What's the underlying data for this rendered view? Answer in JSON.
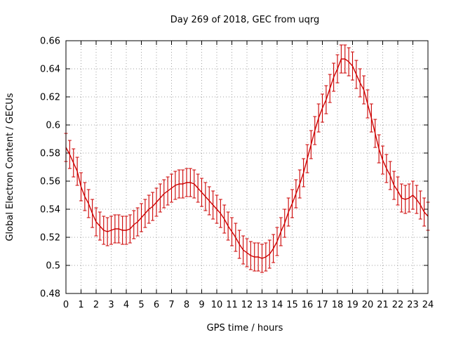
{
  "chart_data": {
    "type": "line",
    "title": "Day 269 of 2018, GEC from uqrg",
    "xlabel": "GPS time / hours",
    "ylabel": "Global Electron Content / GECUs",
    "xlim": [
      0,
      24
    ],
    "ylim": [
      0.48,
      0.66
    ],
    "xticks": [
      0,
      1,
      2,
      3,
      4,
      5,
      6,
      7,
      8,
      9,
      10,
      11,
      12,
      13,
      14,
      15,
      16,
      17,
      18,
      19,
      20,
      21,
      22,
      23,
      24
    ],
    "xtick_labels": [
      "0",
      "1",
      "2",
      "3",
      "4",
      "5",
      "6",
      "7",
      "8",
      "9",
      "10",
      "11",
      "12",
      "13",
      "14",
      "15",
      "16",
      "17",
      "18",
      "19",
      "20",
      "21",
      "22",
      "23",
      "24"
    ],
    "yticks": [
      0.48,
      0.5,
      0.52,
      0.54,
      0.56,
      0.58,
      0.6,
      0.62,
      0.64,
      0.66
    ],
    "ytick_labels": [
      "0.48",
      "0.5",
      "0.52",
      "0.54",
      "0.56",
      "0.58",
      "0.6",
      "0.62",
      "0.64",
      "0.66"
    ],
    "grid": true,
    "series": [
      {
        "name": "GEC",
        "color": "#cc0000",
        "error": 0.01,
        "x": [
          0.0,
          0.25,
          0.5,
          0.75,
          1.0,
          1.25,
          1.5,
          1.75,
          2.0,
          2.25,
          2.5,
          2.75,
          3.0,
          3.25,
          3.5,
          3.75,
          4.0,
          4.25,
          4.5,
          4.75,
          5.0,
          5.25,
          5.5,
          5.75,
          6.0,
          6.25,
          6.5,
          6.75,
          7.0,
          7.25,
          7.5,
          7.75,
          8.0,
          8.25,
          8.5,
          8.75,
          9.0,
          9.25,
          9.5,
          9.75,
          10.0,
          10.25,
          10.5,
          10.75,
          11.0,
          11.25,
          11.5,
          11.75,
          12.0,
          12.25,
          12.5,
          12.75,
          13.0,
          13.25,
          13.5,
          13.75,
          14.0,
          14.25,
          14.5,
          14.75,
          15.0,
          15.25,
          15.5,
          15.75,
          16.0,
          16.25,
          16.5,
          16.75,
          17.0,
          17.25,
          17.5,
          17.75,
          18.0,
          18.25,
          18.5,
          18.75,
          19.0,
          19.25,
          19.5,
          19.75,
          20.0,
          20.25,
          20.5,
          20.75,
          21.0,
          21.25,
          21.5,
          21.75,
          22.0,
          22.25,
          22.5,
          22.75,
          23.0,
          23.25,
          23.5,
          23.75,
          24.0
        ],
        "values": [
          0.584,
          0.579,
          0.573,
          0.567,
          0.556,
          0.549,
          0.544,
          0.537,
          0.531,
          0.528,
          0.525,
          0.524,
          0.525,
          0.526,
          0.526,
          0.525,
          0.525,
          0.526,
          0.529,
          0.531,
          0.534,
          0.537,
          0.54,
          0.542,
          0.545,
          0.548,
          0.551,
          0.553,
          0.555,
          0.557,
          0.558,
          0.558,
          0.559,
          0.559,
          0.558,
          0.555,
          0.552,
          0.549,
          0.546,
          0.543,
          0.54,
          0.537,
          0.533,
          0.528,
          0.524,
          0.52,
          0.515,
          0.511,
          0.509,
          0.507,
          0.506,
          0.506,
          0.505,
          0.506,
          0.508,
          0.512,
          0.517,
          0.524,
          0.53,
          0.538,
          0.544,
          0.551,
          0.558,
          0.566,
          0.576,
          0.586,
          0.596,
          0.605,
          0.612,
          0.618,
          0.626,
          0.634,
          0.64,
          0.647,
          0.647,
          0.645,
          0.642,
          0.636,
          0.63,
          0.625,
          0.615,
          0.605,
          0.594,
          0.583,
          0.575,
          0.569,
          0.564,
          0.557,
          0.553,
          0.548,
          0.547,
          0.548,
          0.55,
          0.547,
          0.543,
          0.538,
          0.535
        ]
      }
    ]
  }
}
